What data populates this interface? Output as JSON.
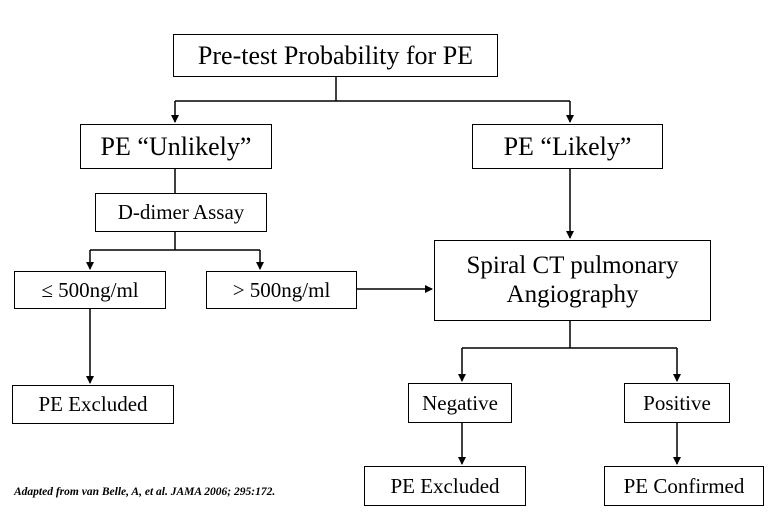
{
  "diagram": {
    "nodes": {
      "pretest": "Pre-test Probability for PE",
      "unlikely": "PE “Unlikely”",
      "likely": "PE “Likely”",
      "ddimer": "D-dimer Assay",
      "low": "≤ 500ng/ml",
      "high": "> 500ng/ml",
      "ct_line1": "Spiral CT pulmonary",
      "ct_line2": "Angiography",
      "excluded_left": "PE Excluded",
      "negative": "Negative",
      "positive": "Positive",
      "excluded_right": "PE Excluded",
      "confirmed": "PE Confirmed"
    },
    "edges": [
      [
        "pretest",
        "unlikely"
      ],
      [
        "pretest",
        "likely"
      ],
      [
        "unlikely",
        "ddimer"
      ],
      [
        "ddimer",
        "low"
      ],
      [
        "ddimer",
        "high"
      ],
      [
        "high",
        "ct"
      ],
      [
        "likely",
        "ct"
      ],
      [
        "low",
        "excluded_left"
      ],
      [
        "ct",
        "negative"
      ],
      [
        "ct",
        "positive"
      ],
      [
        "negative",
        "excluded_right"
      ],
      [
        "positive",
        "confirmed"
      ]
    ],
    "citation": "Adapted from van Belle, A, et al. JAMA 2006; 295:172."
  }
}
